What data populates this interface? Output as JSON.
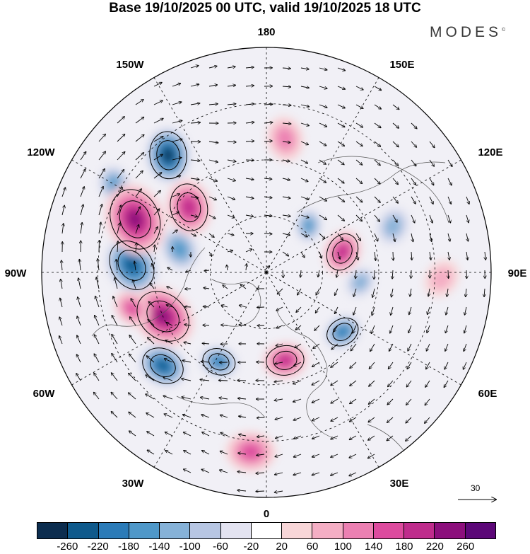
{
  "title": "Base 19/10/2025 00 UTC, valid 19/10/2025 18 UTC",
  "logo": {
    "text": "MODES",
    "mark": "©"
  },
  "meridian_labels": {
    "lon_180": "180",
    "lon_150W": "150W",
    "lon_150E": "150E",
    "lon_120W": "120W",
    "lon_120E": "120E",
    "lon_90W": "90W",
    "lon_90E": "90E",
    "lon_60W": "60W",
    "lon_60E": "60E",
    "lon_30W": "30W",
    "lon_30E": "30E",
    "lon_0": "0"
  },
  "reference_vector": {
    "label": "30"
  },
  "colorbar": {
    "colors": [
      "#0c2d4f",
      "#0f5a8c",
      "#2b7bb8",
      "#4f98c9",
      "#86b2d8",
      "#b7c6e3",
      "#e3e3f1",
      "#ffffff",
      "#f8d6d8",
      "#f4aec4",
      "#ec80b2",
      "#dd4b9e",
      "#bf2c8c",
      "#8c0f7c",
      "#5c0778"
    ],
    "ticks": [
      "-260",
      "-220",
      "-180",
      "-140",
      "-100",
      "-60",
      "-20",
      "20",
      "60",
      "100",
      "140",
      "180",
      "220",
      "260"
    ]
  },
  "anomalies": [
    {
      "name": "neg",
      "lon": -140,
      "r": 0.68,
      "size": 0.1,
      "value": -260
    },
    {
      "name": "neg",
      "lon": -120,
      "r": 0.78,
      "size": 0.07,
      "value": -140
    },
    {
      "name": "neg",
      "lon": -93,
      "r": 0.6,
      "size": 0.11,
      "value": -240
    },
    {
      "name": "neg",
      "lon": -105,
      "r": 0.4,
      "size": 0.08,
      "value": -150
    },
    {
      "name": "neg",
      "lon": -48,
      "r": 0.62,
      "size": 0.09,
      "value": -220
    },
    {
      "name": "neg",
      "lon": -28,
      "r": 0.45,
      "size": 0.07,
      "value": -200
    },
    {
      "name": "neg",
      "lon": 52,
      "r": 0.43,
      "size": 0.07,
      "value": -200
    },
    {
      "name": "neg",
      "lon": 138,
      "r": 0.28,
      "size": 0.06,
      "value": -150
    },
    {
      "name": "neg",
      "lon": 110,
      "r": 0.6,
      "size": 0.07,
      "value": -120
    },
    {
      "name": "neg",
      "lon": 84,
      "r": 0.42,
      "size": 0.06,
      "value": -120
    },
    {
      "name": "pos",
      "lon": -112,
      "r": 0.63,
      "size": 0.13,
      "value": 220
    },
    {
      "name": "pos",
      "lon": -130,
      "r": 0.45,
      "size": 0.1,
      "value": 200
    },
    {
      "name": "pos",
      "lon": -67,
      "r": 0.5,
      "size": 0.12,
      "value": 220
    },
    {
      "name": "pos",
      "lon": -75,
      "r": 0.62,
      "size": 0.07,
      "value": 160
    },
    {
      "name": "pos",
      "lon": 12,
      "r": 0.4,
      "size": 0.08,
      "value": 180
    },
    {
      "name": "pos",
      "lon": 105,
      "r": 0.35,
      "size": 0.08,
      "value": 200
    },
    {
      "name": "pos",
      "lon": 172,
      "r": 0.6,
      "size": 0.08,
      "value": 120
    },
    {
      "name": "pos",
      "lon": -5,
      "r": 0.8,
      "size": 0.09,
      "value": 140
    },
    {
      "name": "pos",
      "lon": 88,
      "r": 0.78,
      "size": 0.07,
      "value": 80
    }
  ]
}
